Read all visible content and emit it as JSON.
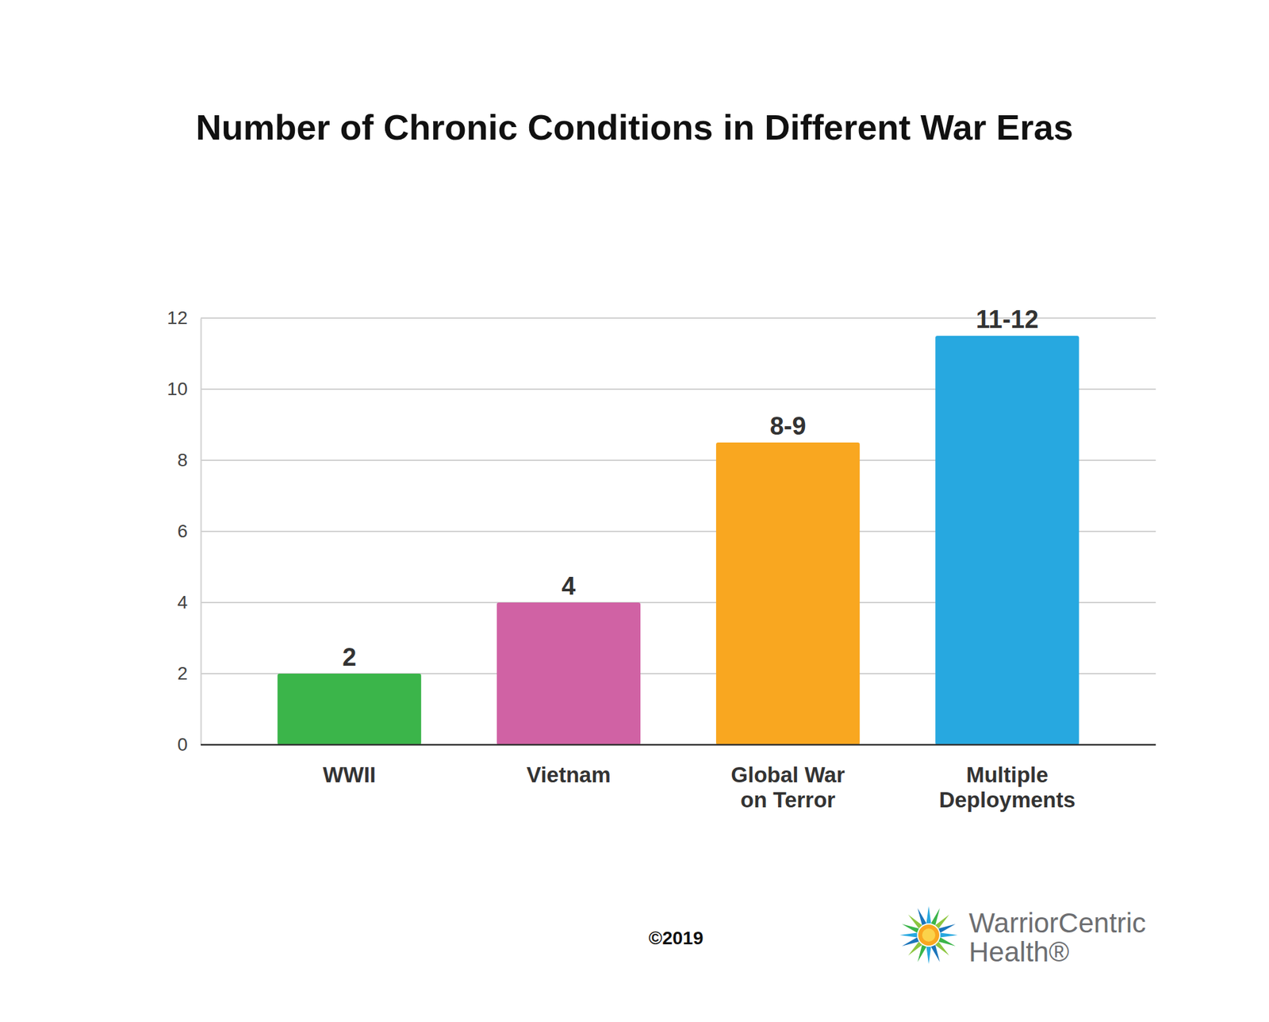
{
  "chart_data": {
    "type": "bar",
    "title": "Number of Chronic Conditions in Different War Eras",
    "categories": [
      "WWII",
      "Vietnam",
      "Global War on Terror",
      "Multiple Deployments"
    ],
    "values": [
      2,
      4,
      8.5,
      11.5
    ],
    "value_labels": [
      "2",
      "4",
      "8-9",
      "11-12"
    ],
    "colors": [
      "#3bb54a",
      "#d062a4",
      "#f9a720",
      "#27a8e0"
    ],
    "ylim": [
      0,
      12
    ],
    "yticks": [
      0,
      2,
      4,
      6,
      8,
      10,
      12
    ],
    "grid": true,
    "data_labels": true,
    "annotations": [
      "©2019",
      "WarriorCentric",
      "Health®"
    ]
  }
}
